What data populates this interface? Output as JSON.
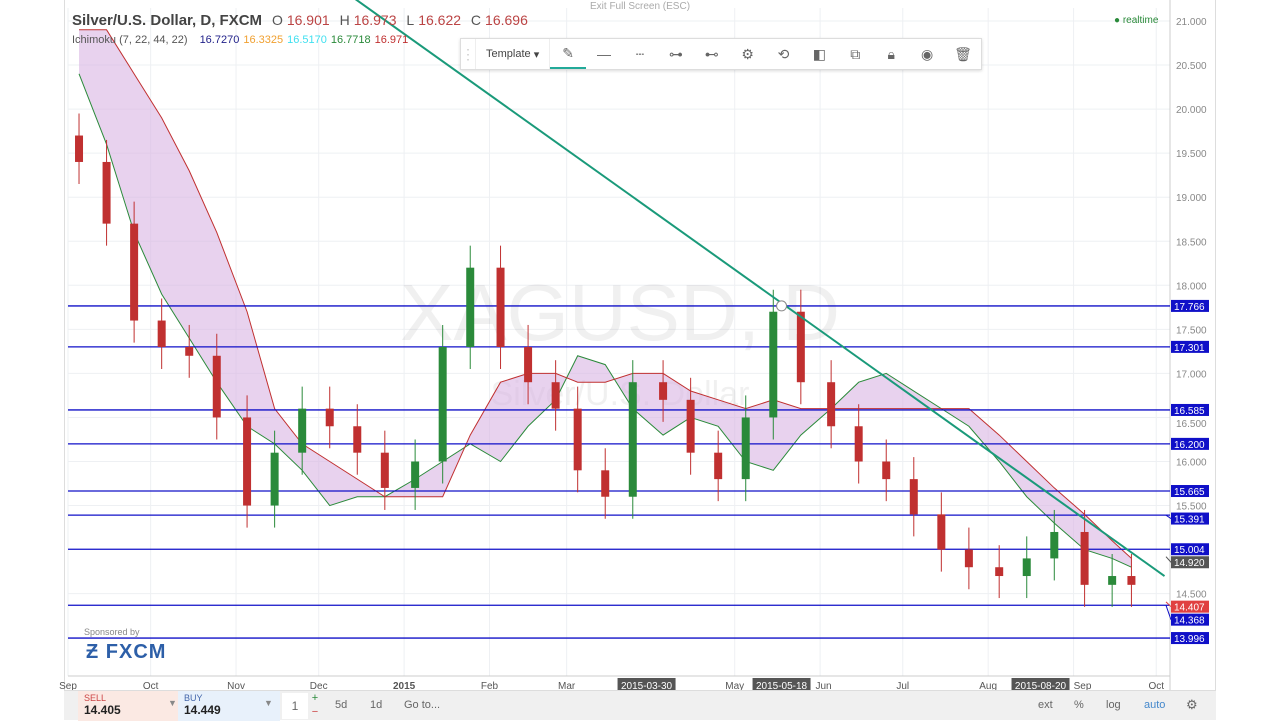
{
  "header": {
    "symbol_title": "Silver/U.S. Dollar, D, FXCM",
    "ohlc": {
      "o_label": "O",
      "o": "16.901",
      "h_label": "H",
      "h": "16.973",
      "l_label": "L",
      "l": "16.622",
      "c_label": "C",
      "c": "16.696"
    },
    "indicator": "Ichimoku (7, 22, 44, 22)",
    "indicator_values": [
      "16.7270",
      "16.3325",
      "16.5170",
      "16.7718",
      "16.971"
    ],
    "indicator_colors": [
      "#22228a",
      "#f0a030",
      "#40e0f0",
      "#2a8a3a",
      "#c03030"
    ]
  },
  "exit_fullscreen": "Exit Full Screen (ESC)",
  "realtime": "realtime",
  "watermark": "XAGUSD, D",
  "watermark_sub": "Silver/U.S. Dollar",
  "toolbar": {
    "template": "Template",
    "icons": [
      "pencil-icon",
      "line-style-icon",
      "line-dash-icon",
      "line-endpoints-icon",
      "line-width-icon",
      "gear-icon",
      "clone-icon",
      "visibility-icon",
      "stack-icon",
      "lock-icon",
      "eye-icon",
      "trash-icon"
    ]
  },
  "sponsor": {
    "label": "Sponsored by",
    "brand": "FXCM"
  },
  "trade": {
    "sell_label": "SELL",
    "sell_price": "14.405",
    "buy_label": "BUY",
    "buy_price": "14.449",
    "quantity": "1",
    "plus": "+",
    "minus": "−"
  },
  "bottom": {
    "ranges": [
      "5d",
      "1d"
    ],
    "goto": "Go to...",
    "ext": "ext",
    "percent": "%",
    "log": "log",
    "auto": "auto"
  },
  "chart_data": {
    "type": "candlestick",
    "yaxis_ticks": [
      "21.000",
      "20.500",
      "20.000",
      "19.500",
      "19.000",
      "18.500",
      "18.000",
      "17.500",
      "17.000",
      "16.500",
      "16.000",
      "15.500",
      "14.500"
    ],
    "ylim": [
      13.75,
      21.1
    ],
    "xaxis_ticks": [
      {
        "label": "Sep",
        "date": "2014-09-01"
      },
      {
        "label": "Oct",
        "date": "2014-10-01"
      },
      {
        "label": "Nov",
        "date": "2014-11-01"
      },
      {
        "label": "Dec",
        "date": "2014-12-01"
      },
      {
        "label": "2015",
        "date": "2015-01-01"
      },
      {
        "label": "Feb",
        "date": "2015-02-01"
      },
      {
        "label": "Mar",
        "date": "2015-03-01"
      },
      {
        "label": "May",
        "date": "2015-05-01"
      },
      {
        "label": "Jun",
        "date": "2015-06-01"
      },
      {
        "label": "Jul",
        "date": "2015-07-01"
      },
      {
        "label": "Aug",
        "date": "2015-08-01"
      },
      {
        "label": "Sep",
        "date": "2015-09-01"
      },
      {
        "label": "Oct",
        "date": "2015-10-01"
      }
    ],
    "xlim": [
      "2014-09-01",
      "2015-10-06"
    ],
    "highlighted_dates": [
      "2015-03-30",
      "2015-05-18",
      "2015-08-20"
    ],
    "dates": [
      "2014-09-05",
      "2014-09-15",
      "2014-09-25",
      "2014-10-05",
      "2014-10-15",
      "2014-10-25",
      "2014-11-05",
      "2014-11-15",
      "2014-11-25",
      "2014-12-05",
      "2014-12-15",
      "2014-12-25",
      "2015-01-05",
      "2015-01-15",
      "2015-01-25",
      "2015-02-05",
      "2015-02-15",
      "2015-02-25",
      "2015-03-05",
      "2015-03-15",
      "2015-03-25",
      "2015-04-05",
      "2015-04-15",
      "2015-04-25",
      "2015-05-05",
      "2015-05-15",
      "2015-05-25",
      "2015-06-05",
      "2015-06-15",
      "2015-06-25",
      "2015-07-05",
      "2015-07-15",
      "2015-07-25",
      "2015-08-05",
      "2015-08-15",
      "2015-08-25",
      "2015-09-05",
      "2015-09-15",
      "2015-09-22"
    ],
    "close": [
      19.4,
      18.7,
      17.6,
      17.3,
      17.2,
      16.5,
      15.5,
      16.1,
      16.6,
      16.4,
      16.1,
      15.7,
      16.0,
      17.3,
      18.2,
      17.3,
      16.9,
      16.6,
      15.9,
      15.6,
      16.9,
      16.7,
      16.1,
      15.8,
      16.5,
      17.7,
      16.9,
      16.4,
      16.0,
      15.8,
      15.4,
      15.0,
      14.8,
      14.7,
      14.9,
      15.2,
      14.6,
      14.7,
      14.6
    ],
    "cloud_span_a": [
      20.4,
      19.6,
      18.6,
      17.9,
      17.4,
      16.9,
      16.4,
      16.2,
      15.9,
      15.5,
      15.6,
      15.6,
      15.8,
      16.0,
      16.2,
      16.0,
      16.4,
      16.7,
      17.2,
      17.1,
      16.6,
      16.3,
      16.5,
      16.4,
      16.0,
      15.9,
      16.3,
      16.6,
      16.9,
      17.0,
      16.8,
      16.6,
      16.4,
      16.0,
      15.6,
      15.3,
      15.0,
      14.9,
      14.8
    ],
    "cloud_span_b": [
      20.9,
      20.9,
      20.4,
      19.9,
      19.3,
      18.6,
      17.7,
      16.6,
      16.2,
      16.0,
      15.8,
      15.6,
      15.6,
      15.6,
      16.3,
      16.9,
      17.0,
      17.0,
      16.9,
      16.9,
      17.0,
      17.0,
      16.8,
      16.7,
      16.6,
      16.7,
      16.6,
      16.6,
      16.6,
      16.6,
      16.6,
      16.6,
      16.6,
      16.3,
      16.0,
      15.7,
      15.4,
      15.1,
      14.9
    ],
    "horizontal_levels": [
      17.766,
      17.301,
      16.585,
      16.2,
      15.665,
      15.391,
      15.004,
      14.368,
      13.996
    ],
    "level_color": "#1010c8",
    "trend_line": {
      "points": [
        {
          "date": "2014-12-12",
          "price": 21.3
        },
        {
          "date": "2015-05-18",
          "price": 17.766
        },
        {
          "date": "2015-10-04",
          "price": 14.7
        }
      ],
      "color": "#1a9a7a"
    },
    "last_price": "14.407",
    "last_price_color": "#e04040",
    "cloud_edge_label": "14.920",
    "up_color": "#2a8a3a",
    "down_color": "#c03030",
    "cloud_color": "#d8b4e2"
  }
}
